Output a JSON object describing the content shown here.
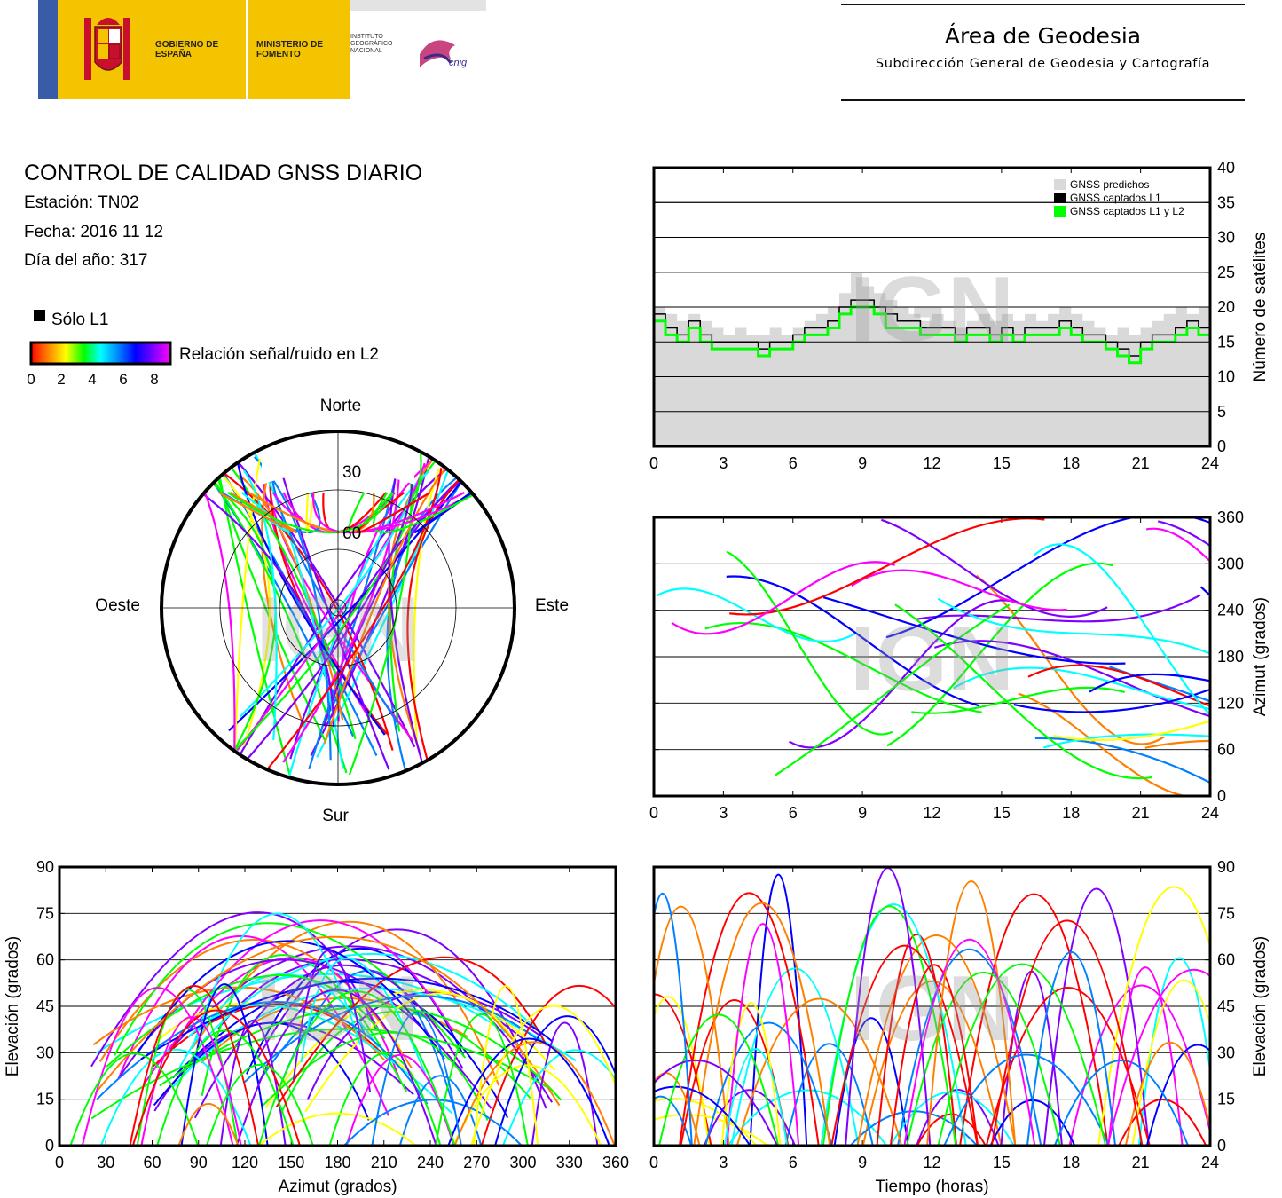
{
  "header": {
    "gov_name": "GOBIERNO DE ESPAÑA",
    "ministry": "MINISTERIO DE FOMENTO",
    "institute": "INSTITUTO GEOGRÁFICO NACIONAL",
    "cnig": "cnig",
    "area_title": "Área de Geodesia",
    "area_subtitle": "Subdirección General de Geodesia y Cartografía"
  },
  "report": {
    "title": "CONTROL DE CALIDAD GNSS DIARIO",
    "station": "Estación: TN02",
    "date": "Fecha: 2016 11 12",
    "doy": "Día del año: 317"
  },
  "legend": {
    "l1_only": "Sólo L1",
    "snr_label": "Relación señal/ruido en L2",
    "snr_ticks": [
      "0",
      "2",
      "4",
      "6",
      "8"
    ],
    "black": "#000000",
    "colorbar": [
      "#ff0000",
      "#ff8000",
      "#ffff00",
      "#00ff00",
      "#00ffff",
      "#0080ff",
      "#0000ff",
      "#8000ff",
      "#ff00ff"
    ]
  },
  "watermark": "IGN",
  "chart_data": [
    {
      "id": "sat-count",
      "type": "area",
      "x_ticks": [
        "0",
        "3",
        "6",
        "9",
        "12",
        "15",
        "18",
        "21",
        "24"
      ],
      "y_ticks": [
        "0",
        "5",
        "10",
        "15",
        "20",
        "25",
        "30",
        "35",
        "40"
      ],
      "xlim": [
        0,
        24
      ],
      "ylim": [
        0,
        40
      ],
      "ylabel": "Número de satélites",
      "legend_position": "top-right",
      "series": [
        {
          "name": "GNSS predichos",
          "color": "#d9d9d9",
          "x": [
            0,
            0.5,
            1,
            1.5,
            2,
            2.5,
            3,
            3.5,
            4,
            4.5,
            5,
            5.5,
            6,
            6.5,
            7,
            7.5,
            8,
            8.5,
            9,
            9.5,
            10,
            10.5,
            11,
            11.5,
            12,
            12.5,
            13,
            13.5,
            14,
            14.5,
            15,
            15.5,
            16,
            16.5,
            17,
            17.5,
            18,
            18.5,
            19,
            19.5,
            20,
            20.5,
            21,
            21.5,
            22,
            22.5,
            23,
            23.5,
            24
          ],
          "values": [
            20,
            19,
            18,
            19,
            18,
            17,
            16,
            17,
            16,
            16,
            17,
            16,
            17,
            18,
            19,
            20,
            22,
            25,
            23,
            22,
            21,
            20,
            19,
            18,
            19,
            18,
            17,
            18,
            19,
            18,
            19,
            18,
            19,
            18,
            19,
            20,
            19,
            18,
            17,
            16,
            17,
            16,
            17,
            18,
            19,
            20,
            19,
            20,
            20
          ]
        },
        {
          "name": "GNSS captados L1",
          "color": "#000000",
          "x": [
            0,
            0.5,
            1,
            1.5,
            2,
            2.5,
            3,
            3.5,
            4,
            4.5,
            5,
            5.5,
            6,
            6.5,
            7,
            7.5,
            8,
            8.5,
            9,
            9.5,
            10,
            10.5,
            11,
            11.5,
            12,
            12.5,
            13,
            13.5,
            14,
            14.5,
            15,
            15.5,
            16,
            16.5,
            17,
            17.5,
            18,
            18.5,
            19,
            19.5,
            20,
            20.5,
            21,
            21.5,
            22,
            22.5,
            23,
            23.5,
            24
          ],
          "values": [
            19,
            17,
            16,
            18,
            16,
            15,
            15,
            15,
            15,
            14,
            15,
            15,
            16,
            17,
            17,
            18,
            20,
            21,
            21,
            20,
            19,
            18,
            18,
            17,
            17,
            17,
            16,
            17,
            17,
            16,
            17,
            16,
            17,
            17,
            17,
            18,
            17,
            16,
            16,
            15,
            14,
            13,
            15,
            16,
            16,
            17,
            18,
            17,
            18
          ]
        },
        {
          "name": "GNSS captados L1 y L2",
          "color": "#00ff00",
          "x": [
            0,
            0.5,
            1,
            1.5,
            2,
            2.5,
            3,
            3.5,
            4,
            4.5,
            5,
            5.5,
            6,
            6.5,
            7,
            7.5,
            8,
            8.5,
            9,
            9.5,
            10,
            10.5,
            11,
            11.5,
            12,
            12.5,
            13,
            13.5,
            14,
            14.5,
            15,
            15.5,
            16,
            16.5,
            17,
            17.5,
            18,
            18.5,
            19,
            19.5,
            20,
            20.5,
            21,
            21.5,
            22,
            22.5,
            23,
            23.5,
            24
          ],
          "values": [
            18,
            16,
            15,
            17,
            15,
            14,
            14,
            14,
            14,
            13,
            14,
            14,
            15,
            16,
            16,
            17,
            19,
            20,
            20,
            19,
            17,
            17,
            17,
            16,
            16,
            16,
            15,
            16,
            16,
            15,
            16,
            15,
            16,
            16,
            16,
            17,
            16,
            15,
            15,
            14,
            13,
            12,
            14,
            15,
            15,
            16,
            17,
            16,
            17
          ]
        }
      ]
    },
    {
      "id": "azimuth-time",
      "type": "scatter",
      "x_ticks": [
        "0",
        "3",
        "6",
        "9",
        "12",
        "15",
        "18",
        "21",
        "24"
      ],
      "y_ticks": [
        "0",
        "60",
        "120",
        "180",
        "240",
        "300",
        "360"
      ],
      "xlim": [
        0,
        24
      ],
      "ylim": [
        0,
        360
      ],
      "ylabel": "Azimut (grados)"
    },
    {
      "id": "elevation-azimuth",
      "type": "scatter",
      "x_ticks": [
        "0",
        "30",
        "60",
        "90",
        "120",
        "150",
        "180",
        "210",
        "240",
        "270",
        "300",
        "330",
        "360"
      ],
      "y_ticks": [
        "0",
        "15",
        "30",
        "45",
        "60",
        "75",
        "90"
      ],
      "xlim": [
        0,
        360
      ],
      "ylim": [
        0,
        90
      ],
      "xlabel": "Azimut (grados)",
      "ylabel": "Elevación (grados)"
    },
    {
      "id": "elevation-time",
      "type": "scatter",
      "x_ticks": [
        "0",
        "3",
        "6",
        "9",
        "12",
        "15",
        "18",
        "21",
        "24"
      ],
      "y_ticks": [
        "0",
        "15",
        "30",
        "45",
        "60",
        "75",
        "90"
      ],
      "xlim": [
        0,
        24
      ],
      "ylim": [
        0,
        90
      ],
      "xlabel": "Tiempo (horas)",
      "ylabel": "Elevación (grados)"
    },
    {
      "id": "skyplot",
      "type": "scatter",
      "labels": {
        "north": "Norte",
        "south": "Sur",
        "west": "Oeste",
        "east": "Este"
      },
      "ring_labels": [
        "30",
        "60"
      ]
    }
  ]
}
